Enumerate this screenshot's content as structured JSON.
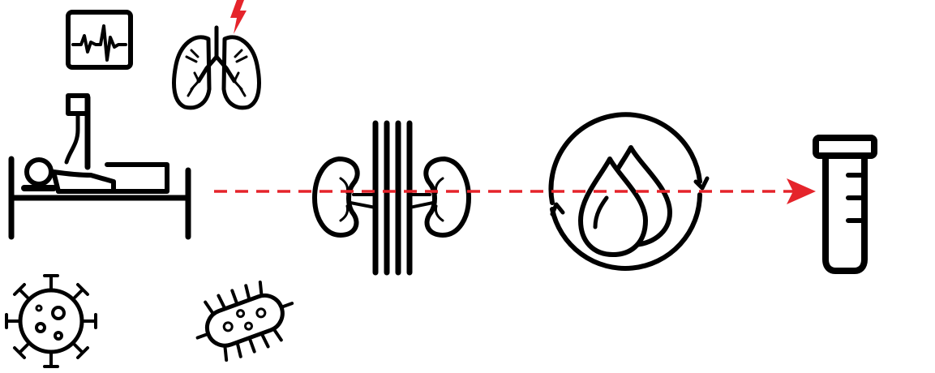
{
  "diagram": {
    "description_type": "icon-flow",
    "colors": {
      "ink": "#000000",
      "accent": "#e5242b",
      "background": "#ffffff"
    },
    "icons": [
      {
        "id": "ecg-monitor",
        "icon": "ecg-monitor-icon"
      },
      {
        "id": "lungs",
        "icon": "lungs-with-lightning-icon"
      },
      {
        "id": "patient-in-bed",
        "icon": "patient-bed-iv-icon"
      },
      {
        "id": "virus",
        "icon": "virus-icon"
      },
      {
        "id": "bacterium",
        "icon": "bacterium-icon"
      },
      {
        "id": "kidneys",
        "icon": "kidneys-with-vessels-icon"
      },
      {
        "id": "blood-drops-cycle",
        "icon": "blood-circulation-icon"
      },
      {
        "id": "test-tube",
        "icon": "test-tube-icon"
      }
    ],
    "flow": {
      "style": "dashed-arrow",
      "from": "patient-in-bed",
      "through": [
        "kidneys",
        "blood-drops-cycle"
      ],
      "to": "test-tube"
    }
  }
}
